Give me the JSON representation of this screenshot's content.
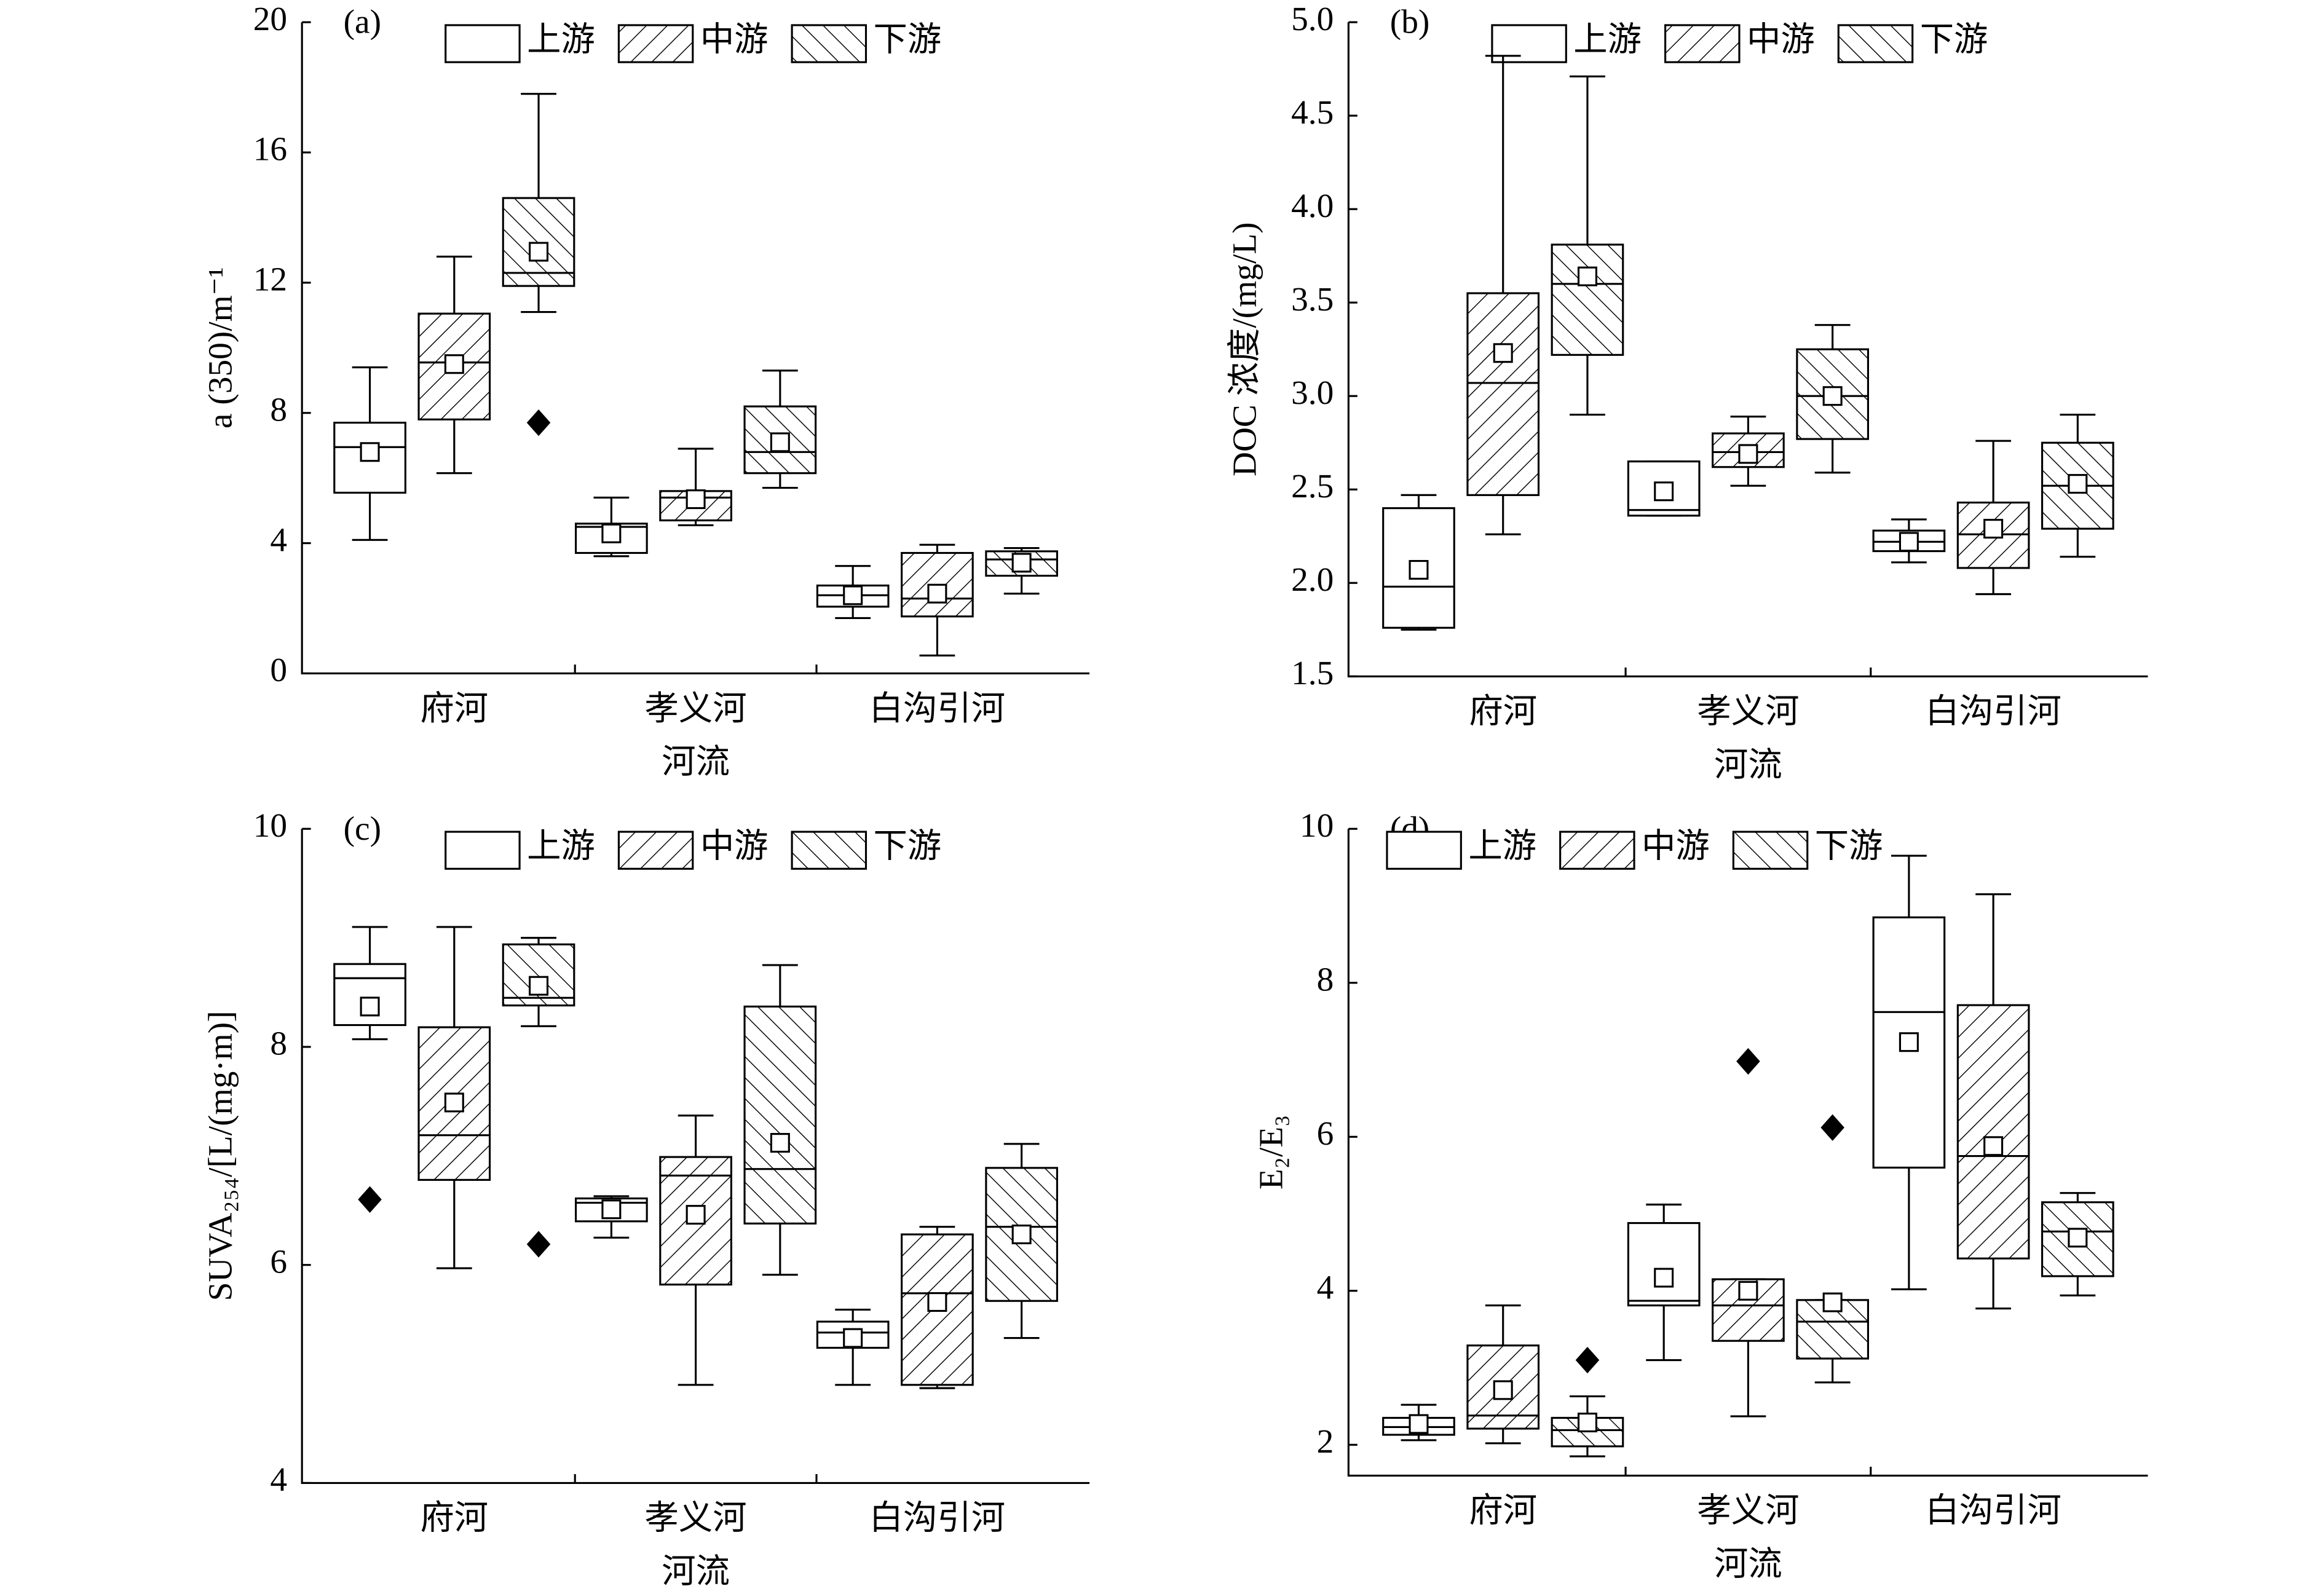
{
  "chart_data": [
    {
      "type": "box",
      "panel_label": "(a)",
      "y_label": "a (350)/m⁻¹",
      "x_label": "河流",
      "categories": [
        "府河",
        "孝义河",
        "白沟引河"
      ],
      "ylim": [
        0,
        20
      ],
      "yticks": [
        0,
        4,
        8,
        12,
        16,
        20
      ],
      "legend": "top",
      "series": [
        {
          "name": "上游",
          "color": "#000000",
          "hatch": "none",
          "values": [
            {
              "min": 4.1,
              "q1": 5.55,
              "median": 6.95,
              "q3": 7.7,
              "max": 9.4,
              "mean": 6.8
            },
            {
              "min": 3.6,
              "q1": 3.7,
              "median": 4.5,
              "q3": 4.6,
              "max": 5.4,
              "mean": 4.3
            },
            {
              "min": 1.7,
              "q1": 2.05,
              "median": 2.4,
              "q3": 2.7,
              "max": 3.3,
              "mean": 2.4
            }
          ]
        },
        {
          "name": "中游",
          "color": "#000000",
          "hatch": "forward",
          "values": [
            {
              "min": 6.15,
              "q1": 7.8,
              "median": 9.55,
              "q3": 11.05,
              "max": 12.8,
              "mean": 9.5
            },
            {
              "min": 4.55,
              "q1": 4.7,
              "median": 5.4,
              "q3": 5.6,
              "max": 6.9,
              "mean": 5.35
            },
            {
              "min": 0.55,
              "q1": 1.75,
              "median": 2.3,
              "q3": 3.7,
              "max": 3.95,
              "mean": 2.45
            }
          ]
        },
        {
          "name": "下游",
          "color": "#000000",
          "hatch": "backward",
          "values": [
            {
              "min": 11.1,
              "q1": 11.9,
              "median": 12.3,
              "q3": 14.6,
              "max": 17.8,
              "mean": 12.95,
              "outliers": [
                7.7
              ]
            },
            {
              "min": 5.7,
              "q1": 6.15,
              "median": 6.8,
              "q3": 8.2,
              "max": 9.3,
              "mean": 7.1
            },
            {
              "min": 2.45,
              "q1": 3.0,
              "median": 3.5,
              "q3": 3.75,
              "max": 3.85,
              "mean": 3.4
            }
          ]
        }
      ]
    },
    {
      "type": "box",
      "panel_label": "(b)",
      "y_label": "DOC 浓度/(mg/L)",
      "x_label": "河流",
      "categories": [
        "府河",
        "孝义河",
        "白沟引河"
      ],
      "ylim": [
        1.5,
        5.0
      ],
      "yticks": [
        1.5,
        {
          "value": 2,
          "label": "2.0"
        },
        2.5,
        {
          "value": 3,
          "label": "3.0"
        },
        3.5,
        {
          "value": 4,
          "label": "4.0"
        },
        4.5,
        {
          "value": 5,
          "label": "5.0"
        }
      ],
      "legend": "top",
      "series": [
        {
          "name": "上游",
          "color": "#000000",
          "hatch": "none",
          "values": [
            {
              "min": 1.75,
              "q1": 1.76,
              "median": 1.98,
              "q3": 2.4,
              "max": 2.47,
              "mean": 2.07
            },
            {
              "min": 2.36,
              "q1": 2.36,
              "median": 2.39,
              "q3": 2.65,
              "max": 2.65,
              "mean": 2.49
            },
            {
              "min": 2.11,
              "q1": 2.17,
              "median": 2.22,
              "q3": 2.28,
              "max": 2.34,
              "mean": 2.22
            }
          ]
        },
        {
          "name": "中游",
          "color": "#000000",
          "hatch": "forward",
          "values": [
            {
              "min": 2.26,
              "q1": 2.47,
              "median": 3.07,
              "q3": 3.55,
              "max": 4.82,
              "mean": 3.23
            },
            {
              "min": 2.52,
              "q1": 2.62,
              "median": 2.7,
              "q3": 2.8,
              "max": 2.89,
              "mean": 2.69
            },
            {
              "min": 1.94,
              "q1": 2.08,
              "median": 2.26,
              "q3": 2.43,
              "max": 2.76,
              "mean": 2.29
            }
          ]
        },
        {
          "name": "下游",
          "color": "#000000",
          "hatch": "backward",
          "values": [
            {
              "min": 2.9,
              "q1": 3.22,
              "median": 3.6,
              "q3": 3.81,
              "max": 4.71,
              "mean": 3.64
            },
            {
              "min": 2.59,
              "q1": 2.77,
              "median": 3.0,
              "q3": 3.25,
              "max": 3.38,
              "mean": 3.0
            },
            {
              "min": 2.14,
              "q1": 2.29,
              "median": 2.52,
              "q3": 2.75,
              "max": 2.9,
              "mean": 2.53
            }
          ]
        }
      ]
    },
    {
      "type": "box",
      "panel_label": "(c)",
      "y_label": "SUVA₂₅₄/[L/(mg·m)]",
      "x_label": "河流",
      "categories": [
        "府河",
        "孝义河",
        "白沟引河"
      ],
      "ylim": [
        4,
        10
      ],
      "yticks": [
        4,
        6,
        8,
        10
      ],
      "legend": "top",
      "series": [
        {
          "name": "上游",
          "color": "#000000",
          "hatch": "none",
          "values": [
            {
              "min": 8.07,
              "q1": 8.2,
              "median": 8.63,
              "q3": 8.76,
              "max": 9.1,
              "mean": 8.37,
              "outliers": [
                6.6
              ]
            },
            {
              "min": 6.25,
              "q1": 6.4,
              "median": 6.57,
              "q3": 6.61,
              "max": 6.63,
              "mean": 6.51
            },
            {
              "min": 4.9,
              "q1": 5.24,
              "median": 5.38,
              "q3": 5.48,
              "max": 5.59,
              "mean": 5.33
            }
          ]
        },
        {
          "name": "中游",
          "color": "#000000",
          "hatch": "forward",
          "values": [
            {
              "min": 5.97,
              "q1": 6.78,
              "median": 7.19,
              "q3": 8.18,
              "max": 9.1,
              "mean": 7.49
            },
            {
              "min": 4.9,
              "q1": 5.82,
              "median": 6.82,
              "q3": 6.99,
              "max": 7.37,
              "mean": 6.46
            },
            {
              "min": 4.87,
              "q1": 4.9,
              "median": 5.74,
              "q3": 6.28,
              "max": 6.35,
              "mean": 5.66
            }
          ]
        },
        {
          "name": "下游",
          "color": "#000000",
          "hatch": "backward",
          "values": [
            {
              "min": 8.19,
              "q1": 8.38,
              "median": 8.45,
              "q3": 8.94,
              "max": 9.0,
              "mean": 8.56,
              "outliers": [
                6.19
              ]
            },
            {
              "min": 5.91,
              "q1": 6.38,
              "median": 6.88,
              "q3": 8.37,
              "max": 8.75,
              "mean": 7.12
            },
            {
              "min": 5.33,
              "q1": 5.67,
              "median": 6.35,
              "q3": 6.89,
              "max": 7.11,
              "mean": 6.28
            }
          ]
        }
      ]
    },
    {
      "type": "box",
      "panel_label": "(d)",
      "y_label": "E₂/E₃",
      "x_label": "河流",
      "categories": [
        "府河",
        "孝义河",
        "白沟引河"
      ],
      "ylim": [
        1.6,
        10
      ],
      "yticks": [
        2,
        4,
        6,
        8,
        10
      ],
      "legend": "top-left",
      "series": [
        {
          "name": "上游",
          "color": "#000000",
          "hatch": "none",
          "values": [
            {
              "min": 2.06,
              "q1": 2.13,
              "median": 2.23,
              "q3": 2.35,
              "max": 2.52,
              "mean": 2.27
            },
            {
              "min": 3.1,
              "q1": 3.81,
              "median": 3.87,
              "q3": 4.88,
              "max": 5.12,
              "mean": 4.17
            },
            {
              "min": 4.02,
              "q1": 5.6,
              "median": 7.62,
              "q3": 8.85,
              "max": 9.65,
              "mean": 7.23
            }
          ]
        },
        {
          "name": "中游",
          "color": "#000000",
          "hatch": "forward",
          "values": [
            {
              "min": 2.02,
              "q1": 2.21,
              "median": 2.38,
              "q3": 3.29,
              "max": 3.81,
              "mean": 2.71
            },
            {
              "min": 2.37,
              "q1": 3.35,
              "median": 3.81,
              "q3": 4.15,
              "max": 4.15,
              "mean": 4.0,
              "outliers": [
                6.98
              ]
            },
            {
              "min": 3.77,
              "q1": 4.42,
              "median": 5.75,
              "q3": 7.71,
              "max": 9.15,
              "mean": 5.88
            }
          ]
        },
        {
          "name": "下游",
          "color": "#000000",
          "hatch": "backward",
          "values": [
            {
              "min": 1.85,
              "q1": 1.98,
              "median": 2.19,
              "q3": 2.35,
              "max": 2.63,
              "mean": 2.29,
              "outliers": [
                3.1
              ]
            },
            {
              "min": 2.81,
              "q1": 3.12,
              "median": 3.6,
              "q3": 3.88,
              "max": 3.88,
              "mean": 3.85,
              "outliers": [
                6.12
              ]
            },
            {
              "min": 3.94,
              "q1": 4.19,
              "median": 4.77,
              "q3": 5.15,
              "max": 5.27,
              "mean": 4.69
            }
          ]
        }
      ]
    }
  ]
}
